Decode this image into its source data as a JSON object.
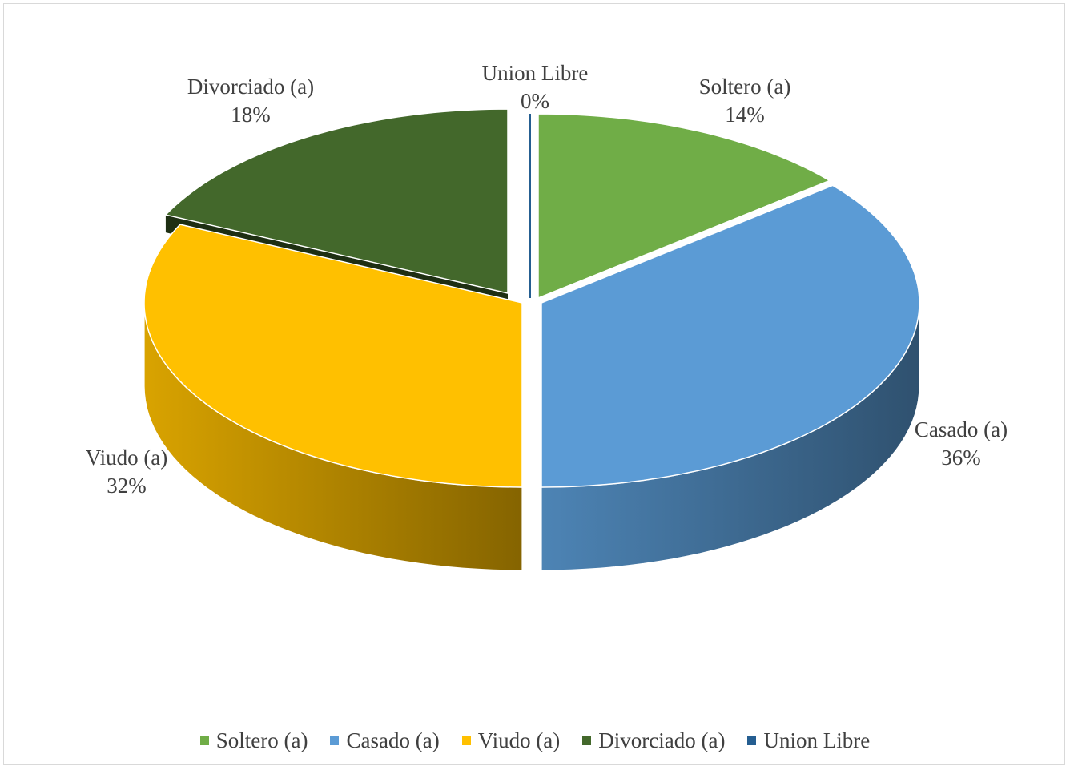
{
  "chart_data": {
    "type": "pie",
    "title": "",
    "categories": [
      "Soltero (a)",
      "Casado (a)",
      "Viudo (a)",
      "Divorciado (a)",
      "Union Libre"
    ],
    "values": [
      14,
      36,
      32,
      18,
      0
    ],
    "value_labels": [
      "14%",
      "36%",
      "32%",
      "18%",
      "0%"
    ],
    "colors": [
      "#70AD47",
      "#5B9BD5",
      "#FFC000",
      "#43682B",
      "#255E91"
    ],
    "legend_position": "bottom",
    "style": "3d-exploded"
  }
}
